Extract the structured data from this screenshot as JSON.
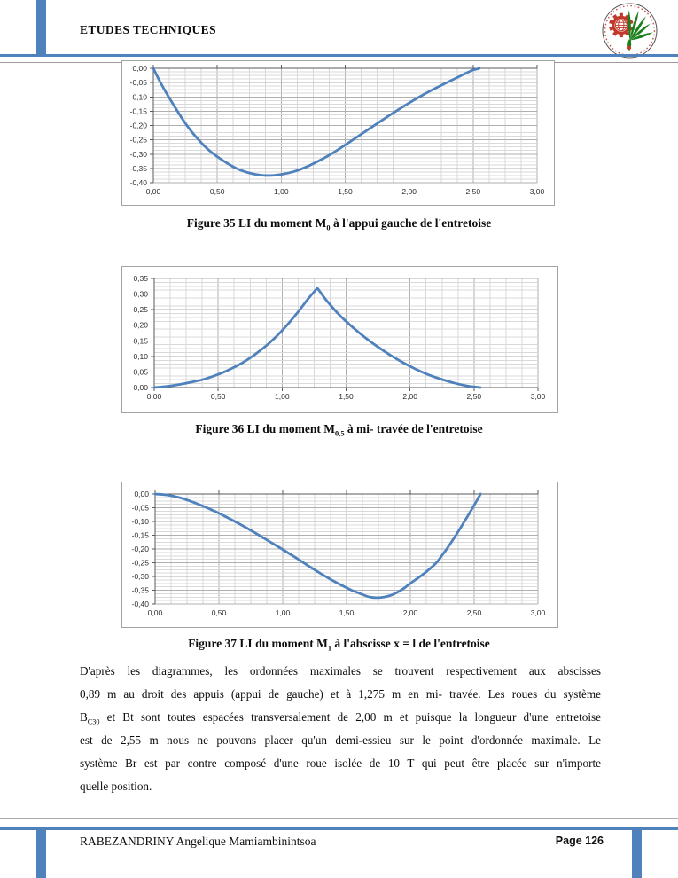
{
  "page": {
    "accent_color": "#4F81BD",
    "header": {
      "title": "ETUDES TECHNIQUES",
      "logo": "espa-school-emblem"
    },
    "footer": {
      "author": "RABEZANDRINY Angelique Mamiambinintsoa",
      "page_label": "Page 126"
    }
  },
  "figures": [
    {
      "number": "Figure 35",
      "caption_segments": [
        {
          "t": "Figure 35 LI du moment M"
        },
        {
          "t": "0",
          "sub": true
        },
        {
          "t": " à l'appui gauche de l'entretoise"
        }
      ]
    },
    {
      "number": "Figure 36",
      "caption_segments": [
        {
          "t": "Figure 36 LI du moment M"
        },
        {
          "t": "0,5",
          "sub": true
        },
        {
          "t": " à mi- travée de l'entretoise"
        }
      ]
    },
    {
      "number": "Figure 37",
      "caption_segments": [
        {
          "t": "Figure 37 LI du moment M"
        },
        {
          "t": "1",
          "sub": true
        },
        {
          "t": " à l'abscisse x = l de l'entretoise"
        }
      ]
    }
  ],
  "chart_data": [
    {
      "type": "line",
      "title": "LI du moment M0 à l'appui gauche de l'entretoise",
      "line_color": "#4F81BD",
      "grid_minor_color": "#D9D9D9",
      "grid_major_color": "#AFAFAF",
      "axis_color": "#5a5a5a",
      "xlim": [
        0,
        3
      ],
      "ylim": [
        -0.4,
        0
      ],
      "x_major": 0.5,
      "x_minor": 0.125,
      "y_major": 0.05,
      "y_minor": 0.0125,
      "axis_zero": "top",
      "x_tick_labels": [
        "0,00",
        "0,50",
        "1,00",
        "1,50",
        "2,00",
        "2,50",
        "3,00"
      ],
      "y_tick_labels": [
        "0,00",
        "-0,05",
        "-0,10",
        "-0,15",
        "-0,20",
        "-0,25",
        "-0,30",
        "-0,35",
        "-0,40"
      ],
      "points": [
        [
          0,
          0
        ],
        [
          0.05,
          -0.045
        ],
        [
          0.1,
          -0.085
        ],
        [
          0.15,
          -0.122
        ],
        [
          0.2,
          -0.158
        ],
        [
          0.25,
          -0.192
        ],
        [
          0.3,
          -0.222
        ],
        [
          0.35,
          -0.248
        ],
        [
          0.4,
          -0.272
        ],
        [
          0.45,
          -0.292
        ],
        [
          0.5,
          -0.309
        ],
        [
          0.55,
          -0.324
        ],
        [
          0.6,
          -0.338
        ],
        [
          0.65,
          -0.35
        ],
        [
          0.7,
          -0.359
        ],
        [
          0.75,
          -0.366
        ],
        [
          0.8,
          -0.371
        ],
        [
          0.85,
          -0.374
        ],
        [
          0.89,
          -0.375
        ],
        [
          0.95,
          -0.374
        ],
        [
          1.0,
          -0.371
        ],
        [
          1.1,
          -0.361
        ],
        [
          1.2,
          -0.344
        ],
        [
          1.3,
          -0.322
        ],
        [
          1.4,
          -0.297
        ],
        [
          1.5,
          -0.268
        ],
        [
          1.6,
          -0.238
        ],
        [
          1.7,
          -0.208
        ],
        [
          1.8,
          -0.178
        ],
        [
          1.9,
          -0.149
        ],
        [
          2.0,
          -0.121
        ],
        [
          2.1,
          -0.095
        ],
        [
          2.2,
          -0.071
        ],
        [
          2.3,
          -0.049
        ],
        [
          2.4,
          -0.027
        ],
        [
          2.45,
          -0.016
        ],
        [
          2.5,
          -0.006
        ],
        [
          2.55,
          0
        ]
      ]
    },
    {
      "type": "line",
      "title": "LI du moment M0,5 à mi- travée de l'entretoise",
      "line_color": "#4F81BD",
      "grid_minor_color": "#D9D9D9",
      "grid_major_color": "#AFAFAF",
      "axis_color": "#5a5a5a",
      "xlim": [
        0,
        3
      ],
      "ylim": [
        0,
        0.35
      ],
      "x_major": 0.5,
      "x_minor": 0.125,
      "y_major": 0.05,
      "y_minor": 0.0125,
      "axis_zero": "bottom",
      "x_tick_labels": [
        "0,00",
        "0,50",
        "1,00",
        "1,50",
        "2,00",
        "2,50",
        "3,00"
      ],
      "y_tick_labels": [
        "0,35",
        "0,30",
        "0,25",
        "0,20",
        "0,15",
        "0,10",
        "0,05",
        "0,00"
      ],
      "points": [
        [
          0,
          0
        ],
        [
          0.1,
          0.004
        ],
        [
          0.2,
          0.01
        ],
        [
          0.3,
          0.018
        ],
        [
          0.4,
          0.028
        ],
        [
          0.5,
          0.042
        ],
        [
          0.6,
          0.06
        ],
        [
          0.7,
          0.082
        ],
        [
          0.8,
          0.11
        ],
        [
          0.9,
          0.143
        ],
        [
          1.0,
          0.183
        ],
        [
          1.1,
          0.23
        ],
        [
          1.2,
          0.283
        ],
        [
          1.26,
          0.312
        ],
        [
          1.275,
          0.318
        ],
        [
          1.29,
          0.311
        ],
        [
          1.35,
          0.278
        ],
        [
          1.45,
          0.232
        ],
        [
          1.55,
          0.194
        ],
        [
          1.65,
          0.16
        ],
        [
          1.75,
          0.13
        ],
        [
          1.85,
          0.103
        ],
        [
          1.95,
          0.079
        ],
        [
          2.05,
          0.058
        ],
        [
          2.15,
          0.04
        ],
        [
          2.25,
          0.026
        ],
        [
          2.35,
          0.014
        ],
        [
          2.45,
          0.005
        ],
        [
          2.55,
          0
        ]
      ]
    },
    {
      "type": "line",
      "title": "LI du moment M1 à l'abscisse x = l de l'entretoise",
      "line_color": "#4F81BD",
      "grid_minor_color": "#D9D9D9",
      "grid_major_color": "#AFAFAF",
      "axis_color": "#5a5a5a",
      "xlim": [
        0,
        3
      ],
      "ylim": [
        -0.4,
        0
      ],
      "x_major": 0.5,
      "x_minor": 0.125,
      "y_major": 0.05,
      "y_minor": 0.0125,
      "axis_zero": "top",
      "x_tick_labels": [
        "0,00",
        "0,50",
        "1,00",
        "1,50",
        "2,00",
        "2,50",
        "3,00"
      ],
      "y_tick_labels": [
        "0,00",
        "-0,05",
        "-0,10",
        "-0,15",
        "-0,20",
        "-0,25",
        "-0,30",
        "-0,35",
        "-0,40"
      ],
      "points": [
        [
          0,
          0
        ],
        [
          0.1,
          -0.004
        ],
        [
          0.2,
          -0.014
        ],
        [
          0.3,
          -0.03
        ],
        [
          0.4,
          -0.049
        ],
        [
          0.5,
          -0.07
        ],
        [
          0.6,
          -0.094
        ],
        [
          0.7,
          -0.119
        ],
        [
          0.8,
          -0.146
        ],
        [
          0.9,
          -0.174
        ],
        [
          1.0,
          -0.202
        ],
        [
          1.1,
          -0.231
        ],
        [
          1.2,
          -0.261
        ],
        [
          1.3,
          -0.29
        ],
        [
          1.4,
          -0.317
        ],
        [
          1.5,
          -0.341
        ],
        [
          1.55,
          -0.352
        ],
        [
          1.6,
          -0.361
        ],
        [
          1.66,
          -0.372
        ],
        [
          1.7,
          -0.376
        ],
        [
          1.75,
          -0.377
        ],
        [
          1.8,
          -0.374
        ],
        [
          1.85,
          -0.368
        ],
        [
          1.9,
          -0.357
        ],
        [
          1.95,
          -0.343
        ],
        [
          2.0,
          -0.325
        ],
        [
          2.1,
          -0.292
        ],
        [
          2.2,
          -0.252
        ],
        [
          2.25,
          -0.222
        ],
        [
          2.3,
          -0.19
        ],
        [
          2.35,
          -0.155
        ],
        [
          2.4,
          -0.118
        ],
        [
          2.45,
          -0.08
        ],
        [
          2.5,
          -0.041
        ],
        [
          2.55,
          0
        ]
      ]
    }
  ],
  "paragraph": {
    "lines": [
      [
        {
          "t": "D'après les diagrammes, les ordonnées maximales se trouvent respectivement aux abscisses"
        }
      ],
      [
        {
          "t": "0,89 m au droit des appuis (appui de gauche) et à 1,275 m en mi- travée. Les roues du système"
        }
      ],
      [
        {
          "t": "B"
        },
        {
          "t": "C30",
          "sub": true
        },
        {
          "t": " et Bt sont toutes espacées transversalement de 2,00 m et puisque la longueur d'une entretoise"
        }
      ],
      [
        {
          "t": "est de 2,55 m nous ne pouvons placer qu'un demi-essieu sur le point d'ordonnée maximale. Le"
        }
      ],
      [
        {
          "t": "système Br est par contre composé d'une roue isolée de 10 T qui peut être placée sur n'importe"
        }
      ],
      [
        {
          "t": "quelle position."
        }
      ]
    ]
  }
}
